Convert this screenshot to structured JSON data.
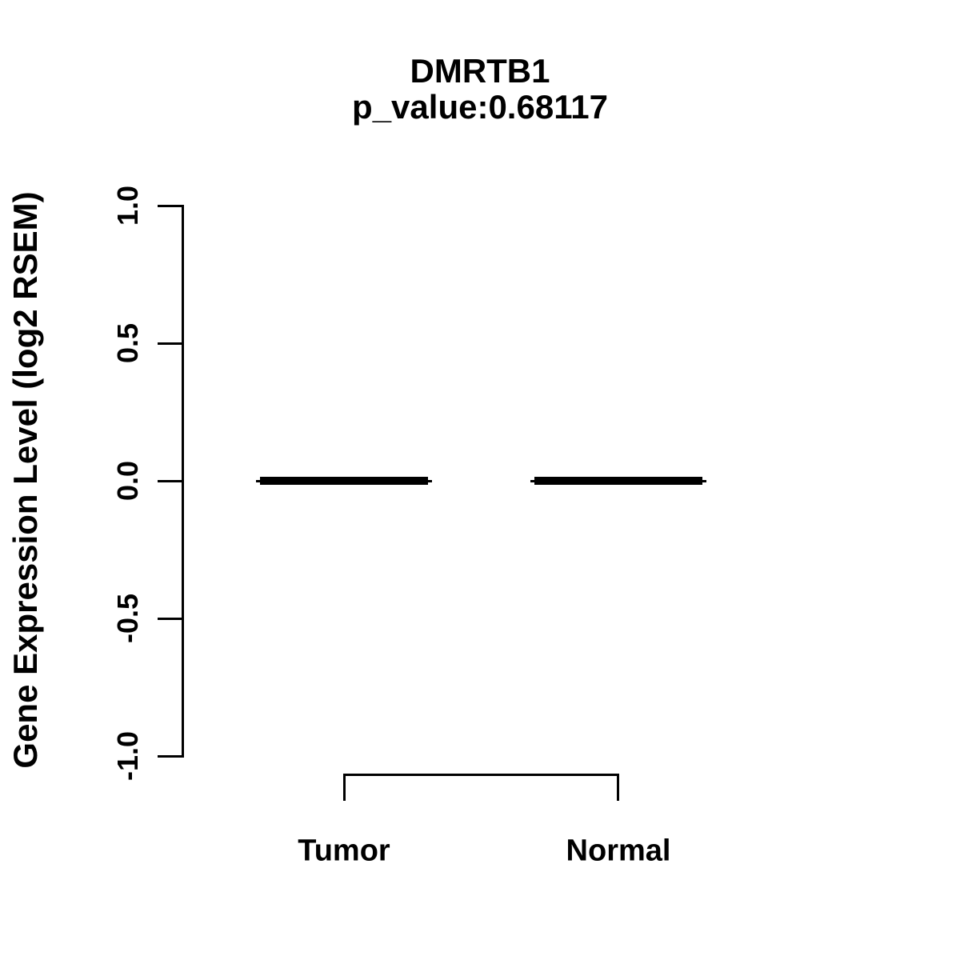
{
  "chart_data": {
    "type": "boxplot",
    "title": "DMRTB1",
    "subtitle": "p_value:0.68117",
    "ylabel": "Gene Expression Level (log2 RSEM)",
    "xlabel": "",
    "categories": [
      "Tumor",
      "Normal"
    ],
    "series": [
      {
        "name": "Tumor",
        "median": 0.0,
        "q1": 0.0,
        "q3": 0.0,
        "whisker_low": 0.0,
        "whisker_high": 0.0
      },
      {
        "name": "Normal",
        "median": 0.0,
        "q1": 0.0,
        "q3": 0.0,
        "whisker_low": 0.0,
        "whisker_high": 0.0
      }
    ],
    "ylim": [
      -1.0,
      1.0
    ],
    "ytick_values": [
      1.0,
      0.5,
      0.0,
      -0.5,
      -1.0
    ],
    "ytick_labels": [
      "1.0",
      "0.5",
      "0.0",
      "-0.5",
      "-1.0"
    ],
    "grid": false,
    "legend": "none",
    "colors": {
      "foreground": "#000000",
      "background": "#ffffff"
    }
  }
}
